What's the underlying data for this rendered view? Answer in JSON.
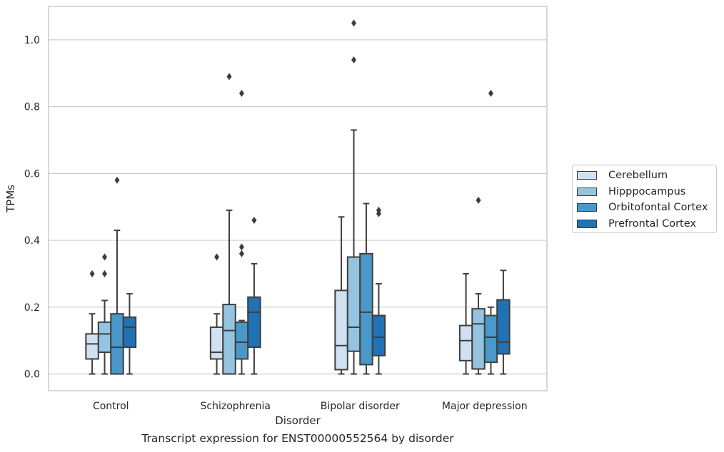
{
  "chart_data": {
    "type": "box",
    "title": "",
    "caption": "Transcript expression for ENST00000552564 by disorder",
    "xlabel": "Disorder",
    "ylabel": "TPMs",
    "ylim": [
      -0.05,
      1.1
    ],
    "yticks": [
      "0.0",
      "0.2",
      "0.4",
      "0.6",
      "0.8",
      "1.0"
    ],
    "grid": true,
    "legend_position": "right",
    "categories": [
      "Control",
      "Schizophrenia",
      "Bipolar disorder",
      "Major depression"
    ],
    "series": [
      {
        "name": "Cerebellum",
        "color": "#d0e1f2",
        "boxes": [
          {
            "whislo": 0.0,
            "q1": 0.045,
            "med": 0.09,
            "q3": 0.12,
            "whishi": 0.18,
            "fliers": [
              0.3
            ]
          },
          {
            "whislo": 0.0,
            "q1": 0.045,
            "med": 0.065,
            "q3": 0.14,
            "whishi": 0.18,
            "fliers": [
              0.35
            ]
          },
          {
            "whislo": 0.0,
            "q1": 0.013,
            "med": 0.085,
            "q3": 0.25,
            "whishi": 0.47,
            "fliers": []
          },
          {
            "whislo": 0.0,
            "q1": 0.04,
            "med": 0.1,
            "q3": 0.145,
            "whishi": 0.3,
            "fliers": []
          }
        ]
      },
      {
        "name": "Hipppocampus",
        "color": "#94c4df",
        "boxes": [
          {
            "whislo": 0.0,
            "q1": 0.065,
            "med": 0.12,
            "q3": 0.155,
            "whishi": 0.22,
            "fliers": [
              0.3,
              0.35
            ]
          },
          {
            "whislo": 0.0,
            "q1": 0.0,
            "med": 0.13,
            "q3": 0.208,
            "whishi": 0.49,
            "fliers": [
              0.89
            ]
          },
          {
            "whislo": 0.0,
            "q1": 0.068,
            "med": 0.14,
            "q3": 0.35,
            "whishi": 0.73,
            "fliers": [
              0.94,
              1.05
            ]
          },
          {
            "whislo": 0.0,
            "q1": 0.015,
            "med": 0.15,
            "q3": 0.195,
            "whishi": 0.24,
            "fliers": [
              0.52
            ]
          }
        ]
      },
      {
        "name": "Orbitofontal Cortex",
        "color": "#4a98c9",
        "boxes": [
          {
            "whislo": 0.0,
            "q1": 0.0,
            "med": 0.08,
            "q3": 0.18,
            "whishi": 0.43,
            "fliers": [
              0.58
            ]
          },
          {
            "whislo": 0.0,
            "q1": 0.045,
            "med": 0.095,
            "q3": 0.155,
            "whishi": 0.16,
            "fliers": [
              0.36,
              0.38,
              0.84
            ]
          },
          {
            "whislo": 0.0,
            "q1": 0.028,
            "med": 0.185,
            "q3": 0.36,
            "whishi": 0.51,
            "fliers": []
          },
          {
            "whislo": 0.0,
            "q1": 0.035,
            "med": 0.11,
            "q3": 0.175,
            "whishi": 0.2,
            "fliers": [
              0.84
            ]
          }
        ]
      },
      {
        "name": "Prefrontal Cortex",
        "color": "#2171b5",
        "boxes": [
          {
            "whislo": 0.0,
            "q1": 0.08,
            "med": 0.14,
            "q3": 0.17,
            "whishi": 0.24,
            "fliers": []
          },
          {
            "whislo": 0.0,
            "q1": 0.08,
            "med": 0.185,
            "q3": 0.23,
            "whishi": 0.33,
            "fliers": [
              0.46
            ]
          },
          {
            "whislo": 0.0,
            "q1": 0.055,
            "med": 0.11,
            "q3": 0.175,
            "whishi": 0.27,
            "fliers": [
              0.48,
              0.49
            ]
          },
          {
            "whislo": 0.0,
            "q1": 0.06,
            "med": 0.095,
            "q3": 0.222,
            "whishi": 0.31,
            "fliers": []
          }
        ]
      }
    ]
  }
}
